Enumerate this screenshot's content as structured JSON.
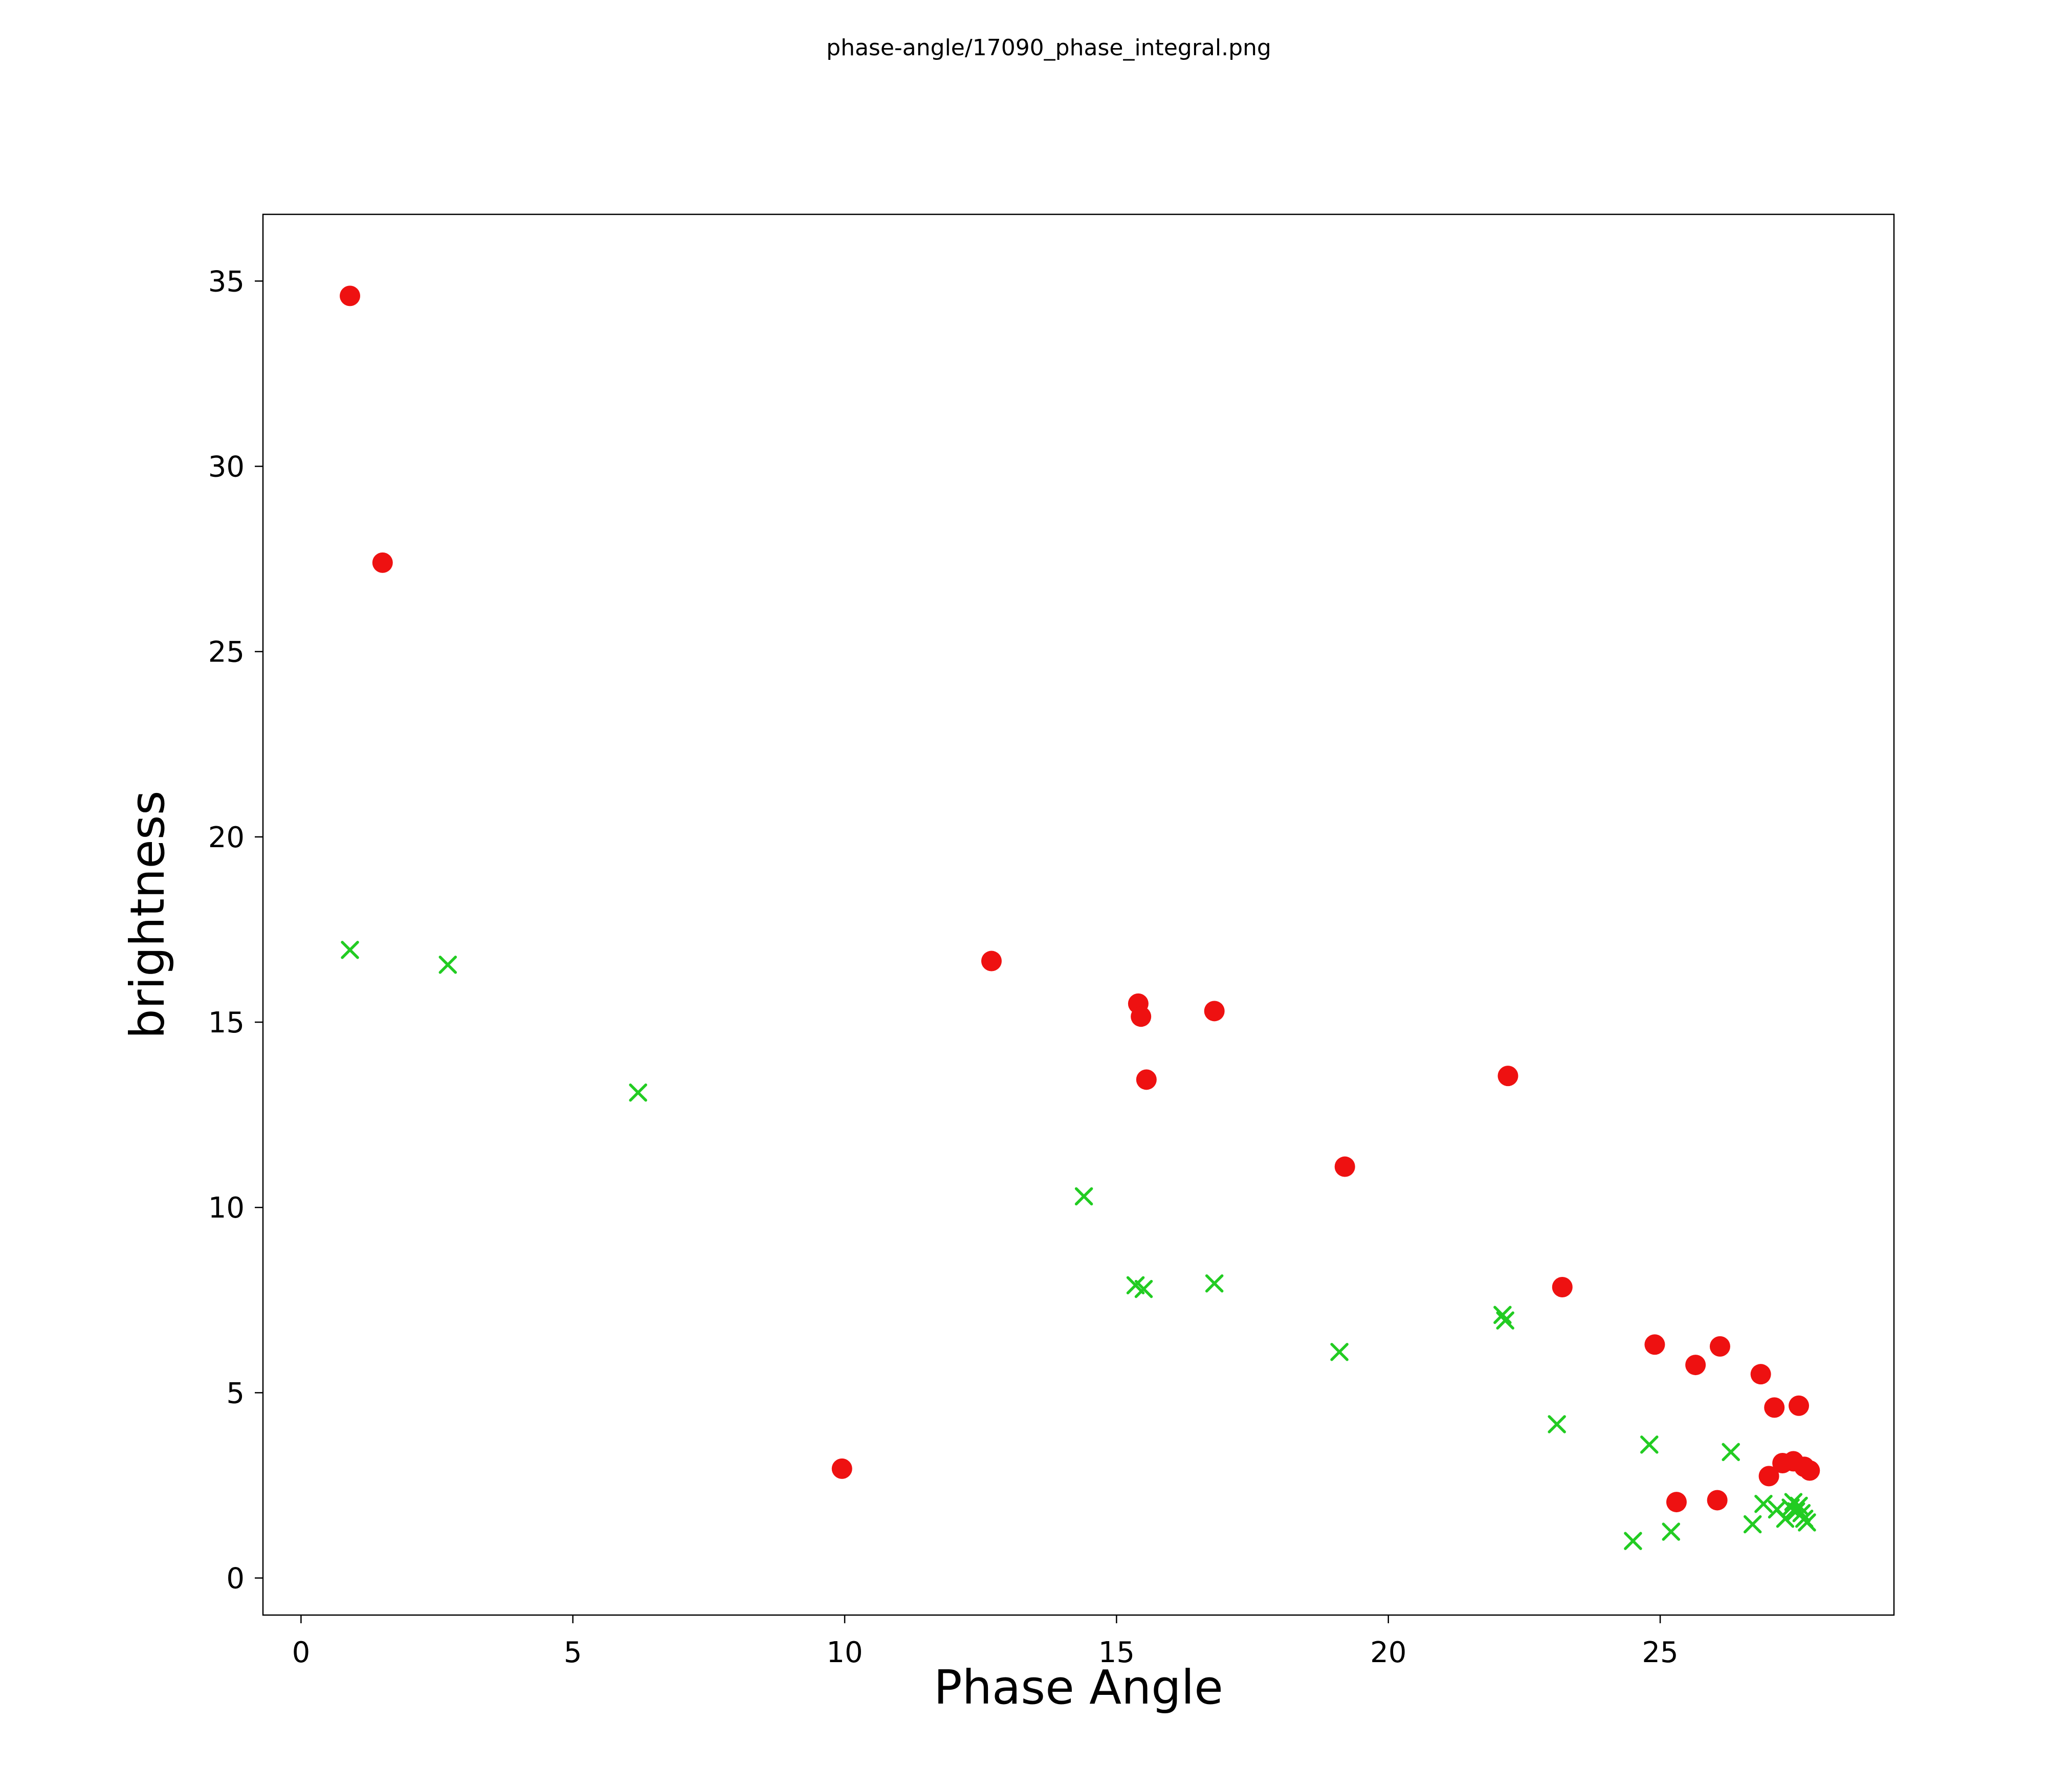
{
  "figure": {
    "title": "phase-angle/17090_phase_integral.png"
  },
  "chart_data": {
    "type": "scatter",
    "title": "phase-angle/17090_phase_integral.png",
    "xlabel": "Phase Angle",
    "ylabel": "brightness",
    "xlim": [
      -0.7,
      29.3
    ],
    "ylim": [
      -1.0,
      36.8
    ],
    "xticks": [
      0,
      5,
      10,
      15,
      20,
      25
    ],
    "yticks": [
      0,
      5,
      10,
      15,
      20,
      25,
      30,
      35
    ],
    "grid": false,
    "legend_position": "none",
    "series": [
      {
        "name": "red-circles",
        "marker": "circle",
        "color": "#ee1111",
        "points": [
          [
            0.9,
            34.6
          ],
          [
            1.5,
            27.4
          ],
          [
            9.95,
            2.95
          ],
          [
            12.7,
            16.65
          ],
          [
            15.4,
            15.5
          ],
          [
            15.45,
            15.15
          ],
          [
            15.55,
            13.45
          ],
          [
            16.8,
            15.3
          ],
          [
            19.2,
            11.1
          ],
          [
            22.2,
            13.55
          ],
          [
            23.2,
            7.85
          ],
          [
            24.9,
            6.3
          ],
          [
            25.3,
            2.05
          ],
          [
            25.65,
            5.75
          ],
          [
            26.05,
            2.1
          ],
          [
            26.1,
            6.25
          ],
          [
            26.85,
            5.5
          ],
          [
            27.0,
            2.75
          ],
          [
            27.1,
            4.6
          ],
          [
            27.25,
            3.1
          ],
          [
            27.45,
            3.15
          ],
          [
            27.55,
            4.65
          ],
          [
            27.65,
            3.0
          ],
          [
            27.75,
            2.9
          ]
        ]
      },
      {
        "name": "green-crosses",
        "marker": "x",
        "color": "#22cc22",
        "points": [
          [
            0.9,
            16.95
          ],
          [
            2.7,
            16.55
          ],
          [
            6.2,
            13.1
          ],
          [
            14.4,
            10.3
          ],
          [
            15.35,
            7.9
          ],
          [
            15.5,
            7.8
          ],
          [
            16.8,
            7.95
          ],
          [
            19.1,
            6.1
          ],
          [
            22.1,
            7.1
          ],
          [
            22.15,
            6.95
          ],
          [
            23.1,
            4.15
          ],
          [
            24.5,
            1.0
          ],
          [
            24.8,
            3.6
          ],
          [
            25.2,
            1.25
          ],
          [
            26.3,
            3.4
          ],
          [
            26.7,
            1.45
          ],
          [
            26.9,
            2.0
          ],
          [
            27.15,
            1.85
          ],
          [
            27.3,
            1.6
          ],
          [
            27.4,
            1.9
          ],
          [
            27.45,
            2.05
          ],
          [
            27.5,
            1.8
          ],
          [
            27.55,
            1.95
          ],
          [
            27.6,
            1.75
          ],
          [
            27.65,
            1.6
          ],
          [
            27.7,
            1.5
          ]
        ]
      }
    ]
  }
}
